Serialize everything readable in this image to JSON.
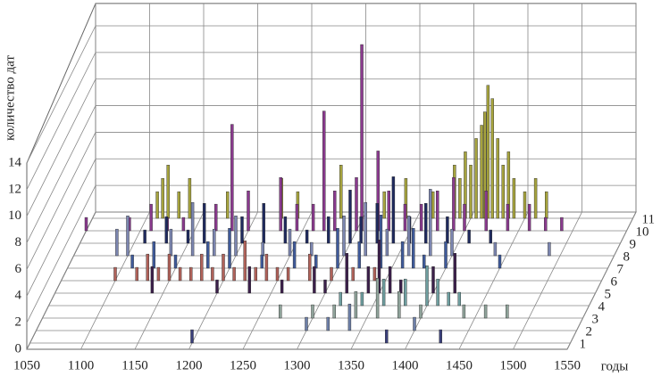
{
  "chart_data": {
    "type": "bar3d",
    "x_label": "годы",
    "y_label": "количество дат",
    "xlim": [
      1050,
      1550
    ],
    "xticks": [
      1050,
      1100,
      1150,
      1200,
      1250,
      1300,
      1350,
      1400,
      1450,
      1500,
      1550
    ],
    "ylim": [
      0,
      14
    ],
    "yticks": [
      0,
      2,
      4,
      6,
      8,
      10,
      12,
      14
    ],
    "zlim": [
      0.5,
      11.5
    ],
    "zticks": [
      1,
      2,
      3,
      4,
      5,
      6,
      7,
      8,
      9,
      10,
      11
    ],
    "grid": true,
    "series": [
      {
        "color": "#3a3f7a",
        "x": [
          1200,
          1380,
          1430
        ],
        "values": [
          1,
          1,
          1
        ]
      },
      {
        "color": "#6d7fa8",
        "x": [
          1300,
          1320,
          1340,
          1400
        ],
        "values": [
          1,
          1,
          2,
          1
        ]
      },
      {
        "color": "#8fa39a",
        "x": [
          1270,
          1300,
          1320,
          1340,
          1360,
          1380,
          1400,
          1440,
          1460,
          1480
        ],
        "values": [
          1,
          1,
          1,
          2,
          3,
          2,
          1,
          1,
          1,
          1
        ]
      },
      {
        "color": "#6f9fa0",
        "x": [
          1320,
          1340,
          1360,
          1380,
          1400,
          1410,
          1420,
          1430
        ],
        "values": [
          1,
          1,
          2,
          2,
          3,
          2,
          1,
          1
        ]
      },
      {
        "color": "#3b1f4a",
        "x": [
          1140,
          1200,
          1230,
          1260,
          1290,
          1300,
          1320,
          1340,
          1350,
          1360,
          1370,
          1400,
          1420
        ],
        "values": [
          2,
          1,
          2,
          1,
          2,
          1,
          3,
          2,
          4,
          2,
          1,
          2,
          3
        ]
      },
      {
        "color": "#b0625a",
        "x": [
          1100,
          1120,
          1130,
          1140,
          1150,
          1160,
          1170,
          1180,
          1190,
          1200,
          1210,
          1220,
          1230,
          1240,
          1250,
          1260,
          1280,
          1300,
          1320,
          1340
        ],
        "values": [
          1,
          1,
          2,
          1,
          2,
          1,
          1,
          2,
          1,
          2,
          1,
          3,
          1,
          2,
          1,
          1,
          2,
          1,
          1,
          1
        ]
      },
      {
        "color": "#3f5a9a",
        "x": [
          1110,
          1130,
          1150,
          1180,
          1200,
          1230,
          1260,
          1280,
          1300,
          1320,
          1340,
          1360,
          1370,
          1380,
          1400,
          1450
        ],
        "values": [
          1,
          2,
          1,
          2,
          3,
          1,
          2,
          1,
          3,
          2,
          4,
          2,
          3,
          1,
          2,
          1
        ]
      },
      {
        "color": "#7c86b0",
        "x": [
          1090,
          1100,
          1140,
          1160,
          1180,
          1200,
          1225,
          1250,
          1270,
          1300,
          1320,
          1340,
          1360,
          1380,
          1400,
          1440,
          1490
        ],
        "values": [
          2,
          3,
          2,
          4,
          2,
          3,
          1,
          2,
          1,
          3,
          4,
          2,
          3,
          5,
          2,
          1,
          1
        ]
      },
      {
        "color": "#1f2a5e",
        "x": [
          1110,
          1130,
          1150,
          1165,
          1200,
          1220,
          1240,
          1260,
          1280,
          1300,
          1310,
          1325,
          1340,
          1355,
          1370,
          1390,
          1410,
          1430
        ],
        "values": [
          1,
          2,
          1,
          3,
          2,
          3,
          2,
          1,
          2,
          4,
          2,
          3,
          5,
          2,
          3,
          2,
          1,
          1
        ]
      },
      {
        "color": "#8a3a8e",
        "x": [
          1050,
          1090,
          1110,
          1125,
          1140,
          1170,
          1185,
          1200,
          1230,
          1245,
          1260,
          1270,
          1280,
          1300,
          1305,
          1320,
          1330,
          1345,
          1360,
          1375,
          1390,
          1400,
          1420,
          1440,
          1460,
          1475,
          1490
        ],
        "values": [
          1,
          1,
          2,
          1,
          1,
          2,
          8,
          3,
          4,
          2,
          2,
          9,
          3,
          4,
          14,
          6,
          3,
          2,
          2,
          3,
          4,
          2,
          3,
          2,
          2,
          1,
          1
        ]
      },
      {
        "color": "#a6a33e",
        "x": [
          1110,
          1115,
          1120,
          1130,
          1140,
          1175,
          1225,
          1240,
          1280,
          1320,
          1340,
          1365,
          1385,
          1390,
          1395,
          1400,
          1405,
          1410,
          1413,
          1416,
          1420,
          1425,
          1430,
          1435,
          1440,
          1450,
          1460,
          1470
        ],
        "values": [
          2,
          3,
          4,
          2,
          3,
          2,
          3,
          2,
          4,
          2,
          3,
          2,
          4,
          3,
          5,
          4,
          6,
          7,
          8,
          10,
          9,
          6,
          4,
          5,
          3,
          2,
          3,
          2
        ]
      }
    ]
  }
}
